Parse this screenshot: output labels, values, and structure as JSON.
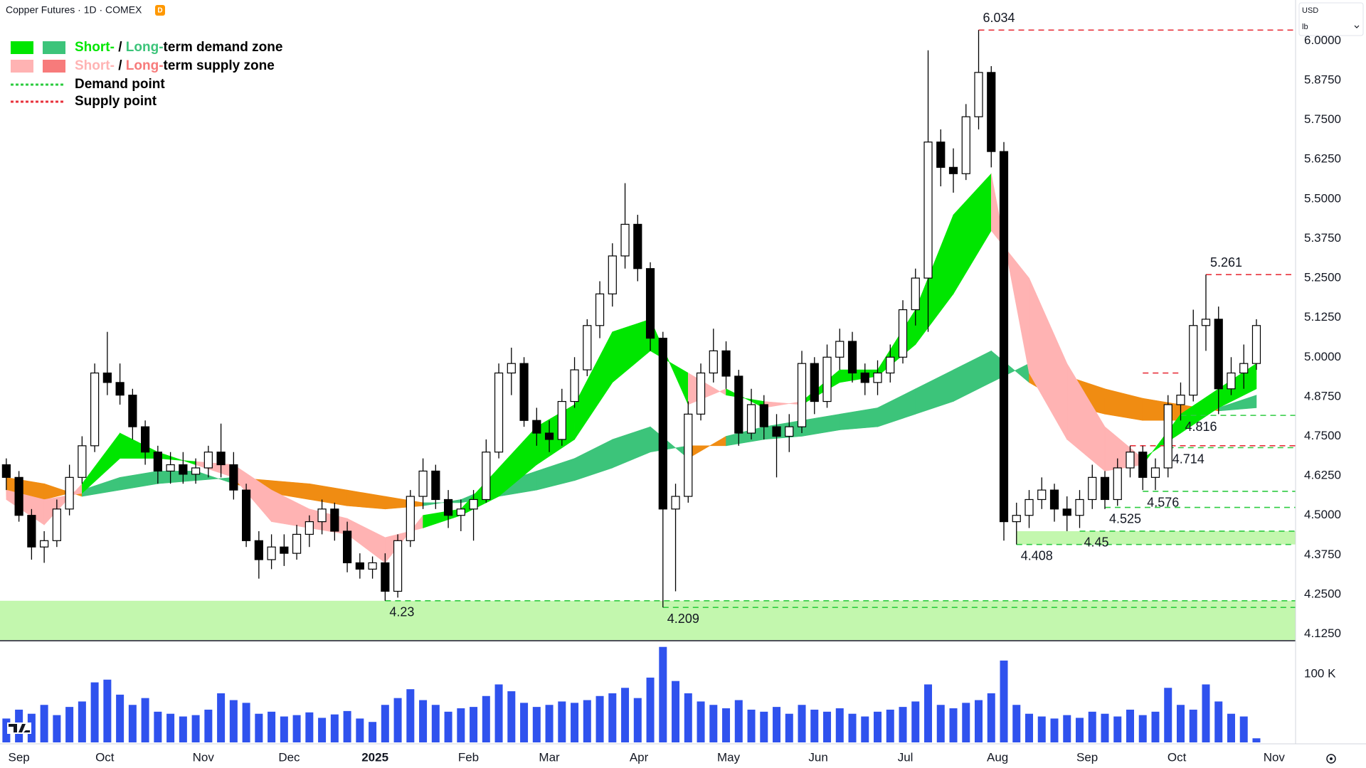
{
  "header": {
    "symbol": "Copper Futures · 1D · COMEX",
    "badge": "D",
    "currency": "USD",
    "unit": "lb"
  },
  "chart_data": {
    "type": "candlestick",
    "xlim": [
      -0.5,
      102.1
    ],
    "xticks": [
      {
        "value": 1.0,
        "label": "Sep"
      },
      {
        "value": 7.8,
        "label": "Oct"
      },
      {
        "value": 15.6,
        "label": "Nov"
      },
      {
        "value": 22.4,
        "label": "Dec"
      },
      {
        "value": 29.2,
        "label": "2025",
        "bold": true
      },
      {
        "value": 36.6,
        "label": "Feb"
      },
      {
        "value": 43.0,
        "label": "Mar"
      },
      {
        "value": 50.1,
        "label": "Apr"
      },
      {
        "value": 57.2,
        "label": "May"
      },
      {
        "value": 64.3,
        "label": "Jun"
      },
      {
        "value": 71.2,
        "label": "Jul"
      },
      {
        "value": 78.5,
        "label": "Aug"
      },
      {
        "value": 85.6,
        "label": "Sep"
      },
      {
        "value": 92.7,
        "label": "Oct"
      },
      {
        "value": 100.4,
        "label": "Nov"
      }
    ],
    "ylim": [
      4.106,
      6.129
    ],
    "yticks": [
      {
        "value": 4.125,
        "label": "4.1250"
      },
      {
        "value": 4.25,
        "label": "4.2500"
      },
      {
        "value": 4.375,
        "label": "4.3750"
      },
      {
        "value": 4.5,
        "label": "4.5000"
      },
      {
        "value": 4.625,
        "label": "4.6250"
      },
      {
        "value": 4.75,
        "label": "4.7500"
      },
      {
        "value": 4.875,
        "label": "4.8750"
      },
      {
        "value": 5.0,
        "label": "5.0000"
      },
      {
        "value": 5.125,
        "label": "5.1250"
      },
      {
        "value": 5.25,
        "label": "5.2500"
      },
      {
        "value": 5.375,
        "label": "5.3750"
      },
      {
        "value": 5.5,
        "label": "5.5000"
      },
      {
        "value": 5.625,
        "label": "5.6250"
      },
      {
        "value": 5.75,
        "label": "5.7500"
      },
      {
        "value": 5.875,
        "label": "5.8750"
      },
      {
        "value": 6.0,
        "label": "6.0000"
      }
    ],
    "candles": {
      "up_color": "#ffffff",
      "down_color": "#000000",
      "edge_color": "#000000",
      "open": [
        4.66,
        4.62,
        4.5,
        4.4,
        4.42,
        4.52,
        4.62,
        4.72,
        4.95,
        4.92,
        4.88,
        4.78,
        4.7,
        4.64,
        4.66,
        4.63,
        4.65,
        4.7,
        4.66,
        4.58,
        4.42,
        4.36,
        4.4,
        4.38,
        4.44,
        4.48,
        4.52,
        4.45,
        4.35,
        4.33,
        4.35,
        4.26,
        4.42,
        4.56,
        4.64,
        4.55,
        4.5,
        4.52,
        4.55,
        4.7,
        4.95,
        4.98,
        4.8,
        4.76,
        4.74,
        4.86,
        4.96,
        5.1,
        5.2,
        5.32,
        5.42,
        5.28,
        5.06,
        4.52,
        4.56,
        4.82,
        4.95,
        5.02,
        4.94,
        4.76,
        4.85,
        4.78,
        4.75,
        4.78,
        4.98,
        4.86,
        5.0,
        5.05,
        4.95,
        4.92,
        4.95,
        5.0,
        5.15,
        5.25,
        5.68,
        5.6,
        5.58,
        5.76,
        5.9,
        5.65,
        4.48,
        4.5,
        4.55,
        4.58,
        4.52,
        4.5,
        4.55,
        4.62,
        4.55,
        4.65,
        4.7,
        4.62,
        4.65,
        4.85,
        4.88,
        5.1,
        5.12,
        4.9,
        4.95,
        4.98
      ],
      "high": [
        4.68,
        4.64,
        4.52,
        4.45,
        4.55,
        4.66,
        4.75,
        4.98,
        5.08,
        4.98,
        4.9,
        4.8,
        4.72,
        4.7,
        4.7,
        4.68,
        4.72,
        4.79,
        4.7,
        4.6,
        4.45,
        4.44,
        4.44,
        4.47,
        4.5,
        4.55,
        4.54,
        4.48,
        4.38,
        4.37,
        4.38,
        4.44,
        4.58,
        4.68,
        4.66,
        4.58,
        4.55,
        4.58,
        4.74,
        4.98,
        5.03,
        5.0,
        4.84,
        4.8,
        4.9,
        5.0,
        5.12,
        5.24,
        5.36,
        5.55,
        5.45,
        5.3,
        5.08,
        4.6,
        4.86,
        4.98,
        5.09,
        5.05,
        4.96,
        4.9,
        4.88,
        4.82,
        4.82,
        5.02,
        5.0,
        5.04,
        5.09,
        5.08,
        4.98,
        4.99,
        5.04,
        5.18,
        5.28,
        5.97,
        5.72,
        5.66,
        5.8,
        6.034,
        5.92,
        5.68,
        4.54,
        4.58,
        4.62,
        4.6,
        4.56,
        4.58,
        4.66,
        4.64,
        4.68,
        4.72,
        4.72,
        4.68,
        4.88,
        4.92,
        5.15,
        5.261,
        5.16,
        5.0,
        5.04,
        5.12
      ],
      "low": [
        4.58,
        4.48,
        4.36,
        4.35,
        4.4,
        4.5,
        4.6,
        4.7,
        4.88,
        4.85,
        4.74,
        4.66,
        4.6,
        4.6,
        4.6,
        4.6,
        4.62,
        4.62,
        4.55,
        4.4,
        4.3,
        4.33,
        4.34,
        4.36,
        4.4,
        4.44,
        4.42,
        4.32,
        4.3,
        4.3,
        4.23,
        4.24,
        4.4,
        4.52,
        4.52,
        4.46,
        4.45,
        4.42,
        4.54,
        4.68,
        4.88,
        4.78,
        4.72,
        4.7,
        4.72,
        4.84,
        4.94,
        5.06,
        5.16,
        5.28,
        5.24,
        5.02,
        4.209,
        4.26,
        4.54,
        4.8,
        4.92,
        4.9,
        4.72,
        4.74,
        4.74,
        4.62,
        4.7,
        4.76,
        4.82,
        4.84,
        4.96,
        4.92,
        4.88,
        4.88,
        4.92,
        4.98,
        5.1,
        5.08,
        5.54,
        5.52,
        5.56,
        5.72,
        5.6,
        4.42,
        4.408,
        4.46,
        4.52,
        4.48,
        4.45,
        4.46,
        4.52,
        4.52,
        4.53,
        4.62,
        4.58,
        4.58,
        4.62,
        4.8,
        4.86,
        5.02,
        4.82,
        4.88,
        4.9,
        4.96
      ],
      "close": [
        4.62,
        4.5,
        4.4,
        4.42,
        4.52,
        4.62,
        4.72,
        4.95,
        4.92,
        4.88,
        4.78,
        4.7,
        4.64,
        4.66,
        4.63,
        4.65,
        4.7,
        4.66,
        4.58,
        4.42,
        4.36,
        4.4,
        4.38,
        4.44,
        4.48,
        4.52,
        4.45,
        4.35,
        4.33,
        4.35,
        4.26,
        4.42,
        4.56,
        4.64,
        4.55,
        4.5,
        4.52,
        4.55,
        4.7,
        4.95,
        4.98,
        4.8,
        4.76,
        4.74,
        4.86,
        4.96,
        5.1,
        5.2,
        5.32,
        5.42,
        5.28,
        5.06,
        4.52,
        4.56,
        4.82,
        4.95,
        5.02,
        4.94,
        4.76,
        4.85,
        4.78,
        4.75,
        4.78,
        4.98,
        4.86,
        5.0,
        5.05,
        4.95,
        4.92,
        4.95,
        5.0,
        5.15,
        5.25,
        5.68,
        5.6,
        5.58,
        5.76,
        5.9,
        5.65,
        4.48,
        4.5,
        4.55,
        4.58,
        4.52,
        4.5,
        4.55,
        4.62,
        4.55,
        4.65,
        4.7,
        4.62,
        4.65,
        4.85,
        4.88,
        5.1,
        5.12,
        4.9,
        4.95,
        4.98,
        5.1
      ]
    },
    "volume": {
      "color": "#2f52ee",
      "ylim": [
        0,
        147000
      ],
      "yticks": [
        {
          "value": 100000,
          "label": "100 K"
        }
      ],
      "values": [
        35000,
        48000,
        42000,
        55000,
        40000,
        52000,
        60000,
        88000,
        92000,
        70000,
        55000,
        65000,
        45000,
        42000,
        38000,
        40000,
        48000,
        72000,
        62000,
        58000,
        42000,
        45000,
        38000,
        40000,
        44000,
        36000,
        41000,
        46000,
        35000,
        30000,
        55000,
        65000,
        78000,
        62000,
        55000,
        45000,
        50000,
        52000,
        68000,
        85000,
        75000,
        58000,
        52000,
        55000,
        60000,
        58000,
        62000,
        68000,
        72000,
        80000,
        65000,
        95000,
        140000,
        90000,
        72000,
        60000,
        55000,
        50000,
        62000,
        48000,
        45000,
        52000,
        42000,
        55000,
        48000,
        45000,
        50000,
        42000,
        38000,
        45000,
        48000,
        52000,
        60000,
        85000,
        55000,
        50000,
        58000,
        62000,
        72000,
        120000,
        55000,
        42000,
        38000,
        35000,
        40000,
        36000,
        45000,
        42000,
        38000,
        48000,
        40000,
        45000,
        80000,
        55000,
        48000,
        85000,
        60000,
        42000,
        38000,
        6000
      ]
    },
    "bands": [
      {
        "up_color": "#3cc47a",
        "down_color": "#f08c12",
        "x": [
          0,
          3,
          6,
          9,
          12,
          15,
          18,
          21,
          24,
          27,
          30,
          33,
          36,
          39,
          42,
          45,
          48,
          51,
          54,
          57,
          60,
          63,
          66,
          69,
          72,
          75,
          78,
          81,
          84,
          87,
          90,
          93,
          96,
          99
        ],
        "fast": [
          4.56,
          4.55,
          4.58,
          4.62,
          4.64,
          4.64,
          4.6,
          4.57,
          4.55,
          4.53,
          4.52,
          4.53,
          4.55,
          4.6,
          4.64,
          4.68,
          4.74,
          4.78,
          4.68,
          4.75,
          4.78,
          4.8,
          4.82,
          4.84,
          4.9,
          4.96,
          5.02,
          4.92,
          4.85,
          4.82,
          4.8,
          4.8,
          4.84,
          4.88
        ],
        "slow": [
          4.62,
          4.6,
          4.56,
          4.58,
          4.6,
          4.61,
          4.62,
          4.61,
          4.6,
          4.58,
          4.56,
          4.54,
          4.54,
          4.56,
          4.58,
          4.61,
          4.65,
          4.7,
          4.72,
          4.72,
          4.74,
          4.75,
          4.77,
          4.78,
          4.82,
          4.86,
          4.92,
          4.98,
          4.94,
          4.9,
          4.87,
          4.85,
          4.83,
          4.84
        ]
      },
      {
        "up_color": "#00e600",
        "down_color": "#ffb3b3",
        "x": [
          0,
          3,
          6,
          9,
          12,
          15,
          18,
          21,
          24,
          27,
          30,
          33,
          36,
          39,
          42,
          45,
          48,
          51,
          54,
          57,
          60,
          63,
          66,
          69,
          72,
          75,
          78,
          81,
          84,
          87,
          90,
          93,
          96,
          99
        ],
        "fast": [
          4.55,
          4.47,
          4.6,
          4.76,
          4.7,
          4.66,
          4.62,
          4.48,
          4.46,
          4.44,
          4.35,
          4.5,
          4.52,
          4.65,
          4.78,
          4.85,
          5.08,
          5.12,
          4.85,
          4.9,
          4.84,
          4.86,
          4.96,
          4.96,
          5.15,
          5.45,
          5.58,
          4.95,
          4.74,
          4.64,
          4.66,
          4.82,
          4.9,
          4.98
        ],
        "slow": [
          4.58,
          4.55,
          4.57,
          4.68,
          4.68,
          4.67,
          4.66,
          4.58,
          4.52,
          4.49,
          4.43,
          4.46,
          4.5,
          4.56,
          4.66,
          4.74,
          4.92,
          5.02,
          4.95,
          4.88,
          4.86,
          4.85,
          4.92,
          4.94,
          5.04,
          5.2,
          5.4,
          5.25,
          4.98,
          4.78,
          4.68,
          4.76,
          4.84,
          4.9
        ]
      }
    ],
    "zones": [
      {
        "start": -0.5,
        "low": 4.106,
        "high": 4.23,
        "color": "#c3f7ae"
      },
      {
        "start": 80,
        "low": 4.408,
        "high": 4.45,
        "color": "#c3f7ae"
      }
    ],
    "demand_points": {
      "color": "#2ecc40",
      "items": [
        {
          "value": 4.23,
          "start": 30
        },
        {
          "value": 4.209,
          "start": 52
        },
        {
          "value": 4.408,
          "start": 80
        },
        {
          "value": 4.45,
          "start": 85
        },
        {
          "value": 4.525,
          "start": 87
        },
        {
          "value": 4.576,
          "start": 90
        },
        {
          "value": 4.714,
          "start": 92
        },
        {
          "value": 4.816,
          "start": 93
        }
      ]
    },
    "supply_points": {
      "color": "#e8323c",
      "items": [
        {
          "value": 6.034,
          "start": 77
        },
        {
          "value": 5.261,
          "start": 95
        }
      ]
    },
    "minor_supply_points": {
      "color": "#e8323c",
      "items": [
        {
          "value": 4.95,
          "start": 90,
          "end": 93
        },
        {
          "value": 4.72,
          "start": 89
        }
      ]
    },
    "legend": [
      {
        "swatches": [
          "#00e600",
          "#3cc47a"
        ],
        "parts": [
          {
            "text": "Short-",
            "color": "#00e600"
          },
          {
            "text": " / ",
            "color": "#000000"
          },
          {
            "text": "Long-",
            "color": "#3cc47a"
          },
          {
            "text": "term demand zone",
            "color": "#000000"
          }
        ]
      },
      {
        "swatches": [
          "#ffb3b3",
          "#f77b7b"
        ],
        "parts": [
          {
            "text": "Short-",
            "color": "#ffb3b3"
          },
          {
            "text": " / ",
            "color": "#000000"
          },
          {
            "text": "Long-",
            "color": "#f77b7b"
          },
          {
            "text": "term supply zone",
            "color": "#000000"
          }
        ]
      },
      {
        "dash": "#2ecc40",
        "parts": [
          {
            "text": "Demand point",
            "color": "#000000"
          }
        ]
      },
      {
        "dash": "#e8323c",
        "parts": [
          {
            "text": "Supply point",
            "color": "#000000"
          }
        ]
      }
    ]
  }
}
